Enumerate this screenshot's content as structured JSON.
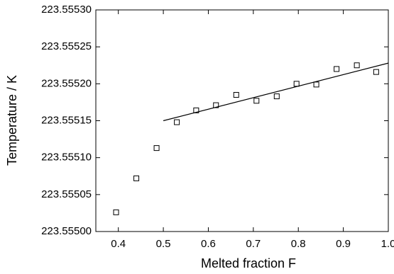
{
  "chart_data": {
    "type": "scatter",
    "x_label": "Melted fraction F",
    "y_label": "Temperature / K",
    "x": [
      0.395,
      0.44,
      0.485,
      0.53,
      0.573,
      0.617,
      0.662,
      0.707,
      0.752,
      0.796,
      0.84,
      0.885,
      0.93,
      0.973
    ],
    "values": [
      223.555026,
      223.555072,
      223.555113,
      223.555148,
      223.555164,
      223.555171,
      223.555185,
      223.555177,
      223.555183,
      223.5552,
      223.555199,
      223.55522,
      223.555225,
      223.555216
    ],
    "color": "#000000",
    "fit": {
      "x": [
        0.5,
        1.0
      ],
      "values": [
        223.55515,
        223.555228
      ],
      "color": "#000000"
    },
    "xlim": [
      0.35,
      1.0
    ],
    "xticks": [
      0.4,
      0.5,
      0.6,
      0.7,
      0.8,
      0.9,
      {
        "value": 1.0,
        "label": "1.0"
      }
    ],
    "ylim": [
      223.555,
      223.5553
    ],
    "yticks": [
      {
        "value": 223.555,
        "label": "223.55500"
      },
      {
        "value": 223.55505,
        "label": "223.55505"
      },
      {
        "value": 223.5551,
        "label": "223.55510"
      },
      {
        "value": 223.55515,
        "label": "223.55515"
      },
      {
        "value": 223.5552,
        "label": "223.55520"
      },
      {
        "value": 223.55525,
        "label": "223.55525"
      },
      {
        "value": 223.5553,
        "label": "223.55530"
      }
    ],
    "grid": false
  }
}
